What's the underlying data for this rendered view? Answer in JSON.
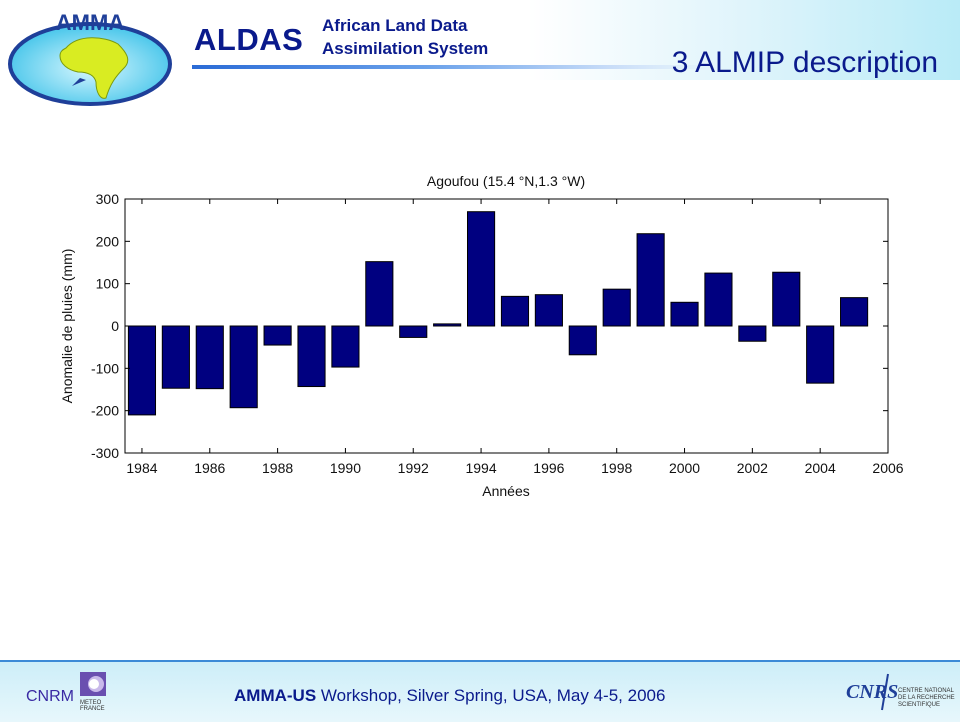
{
  "header": {
    "logo_text": "AMMA",
    "brand": "ALDAS",
    "subtitle_line1": "African Land Data",
    "subtitle_line2": "Assimilation System",
    "slide_title": "3 ALMIP description"
  },
  "footer": {
    "org": "CNRM",
    "meteo_line1": "METEO",
    "meteo_line2": "FRANCE",
    "event_bold": "AMMA-US",
    "event_rest": " Workshop, Silver Spring, USA, May 4-5, 2006",
    "cnrs_logo_text": "CNRS",
    "cnrs_line1": "CENTRE NATIONAL",
    "cnrs_line2": "DE LA RECHERCHE",
    "cnrs_line3": "SCIENTIFIQUE"
  },
  "colors": {
    "bar": "#000080",
    "title": "#0a1a8c"
  },
  "chart_data": {
    "type": "bar",
    "title": "Agoufou (15.4 °N,1.3 °W)",
    "xlabel": "Années",
    "ylabel": "Anomalie de pluies (mm)",
    "x": [
      1984,
      1985,
      1986,
      1987,
      1988,
      1989,
      1990,
      1991,
      1992,
      1993,
      1994,
      1995,
      1996,
      1997,
      1998,
      1999,
      2000,
      2001,
      2002,
      2003,
      2004,
      2005
    ],
    "values": [
      -210,
      -147,
      -148,
      -193,
      -45,
      -143,
      -97,
      152,
      -27,
      5,
      270,
      70,
      74,
      -68,
      87,
      218,
      56,
      125,
      -36,
      127,
      -135,
      67
    ],
    "xlim": [
      1983.5,
      2006
    ],
    "ylim": [
      -300,
      300
    ],
    "xticks": [
      1984,
      1986,
      1988,
      1990,
      1992,
      1994,
      1996,
      1998,
      2000,
      2002,
      2004,
      2006
    ],
    "yticks": [
      -300,
      -200,
      -100,
      0,
      100,
      200,
      300
    ]
  }
}
